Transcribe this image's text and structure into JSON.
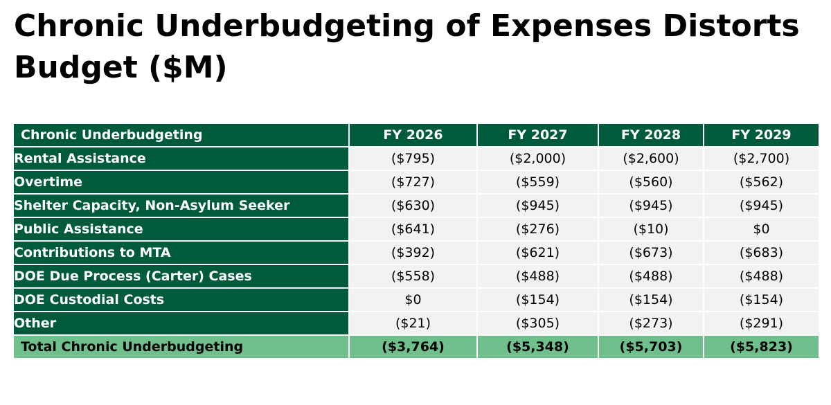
{
  "title": "Chronic Underbudgeting of Expenses Distorts Budget ($M)",
  "table": {
    "corner_label": "Chronic Underbudgeting",
    "columns": [
      "FY 2026",
      "FY 2027",
      "FY 2028",
      "FY 2029"
    ],
    "rows": [
      {
        "label": "Rental Assistance",
        "values": [
          "($795)",
          "($2,000)",
          "($2,600)",
          "($2,700)"
        ]
      },
      {
        "label": "Overtime",
        "values": [
          "($727)",
          "($559)",
          "($560)",
          "($562)"
        ]
      },
      {
        "label": "Shelter Capacity, Non-Asylum Seeker",
        "values": [
          "($630)",
          "($945)",
          "($945)",
          "($945)"
        ]
      },
      {
        "label": "Public Assistance",
        "values": [
          "($641)",
          "($276)",
          "($10)",
          "$0"
        ]
      },
      {
        "label": "Contributions to MTA",
        "values": [
          "($392)",
          "($621)",
          "($673)",
          "($683)"
        ]
      },
      {
        "label": "DOE Due Process (Carter) Cases",
        "values": [
          "($558)",
          "($488)",
          "($488)",
          "($488)"
        ]
      },
      {
        "label": "DOE Custodial Costs",
        "values": [
          "$0",
          "($154)",
          "($154)",
          "($154)"
        ]
      },
      {
        "label": "Other",
        "values": [
          "($21)",
          "($305)",
          "($273)",
          "($291)"
        ]
      }
    ],
    "total": {
      "label": "Total Chronic Underbudgeting",
      "values": [
        "($3,764)",
        "($5,348)",
        "($5,703)",
        "($5,823)"
      ]
    }
  },
  "colors": {
    "header_green": "#005a3c",
    "total_green": "#6fc08d",
    "cell_gray": "#f2f2f2"
  }
}
